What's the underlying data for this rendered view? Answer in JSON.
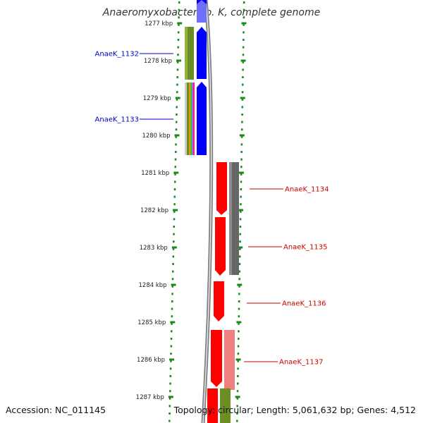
{
  "title": "Anaeromyxobacter sp. K, complete genome",
  "footer": {
    "accession": "Accession: NC_011145",
    "summary": "Topology: circular; Length: 5,061,632 bp; Genes: 4,512"
  },
  "colors": {
    "tick": "#1a8a1a",
    "label_left": "#0000cc",
    "label_right": "#cc0000",
    "gene_blue": "#0000ff",
    "gene_olive": "#6b8e23",
    "gene_red": "#ff0000",
    "gene_gray": "#666666",
    "gene_pink": "#f08080",
    "backbone": "#808080"
  },
  "ruler": {
    "unit": "kbp",
    "labels": [
      "1277 kbp",
      "1278 kbp",
      "1279 kbp",
      "1280 kbp",
      "1281 kbp",
      "1282 kbp",
      "1283 kbp",
      "1284 kbp",
      "1285 kbp",
      "1286 kbp",
      "1287 kbp"
    ]
  },
  "genes": [
    {
      "name": "AnaeK_1132",
      "side": "left"
    },
    {
      "name": "AnaeK_1133",
      "side": "left"
    },
    {
      "name": "AnaeK_1134",
      "side": "right"
    },
    {
      "name": "AnaeK_1135",
      "side": "right"
    },
    {
      "name": "AnaeK_1136",
      "side": "right"
    },
    {
      "name": "AnaeK_1137",
      "side": "right"
    }
  ]
}
